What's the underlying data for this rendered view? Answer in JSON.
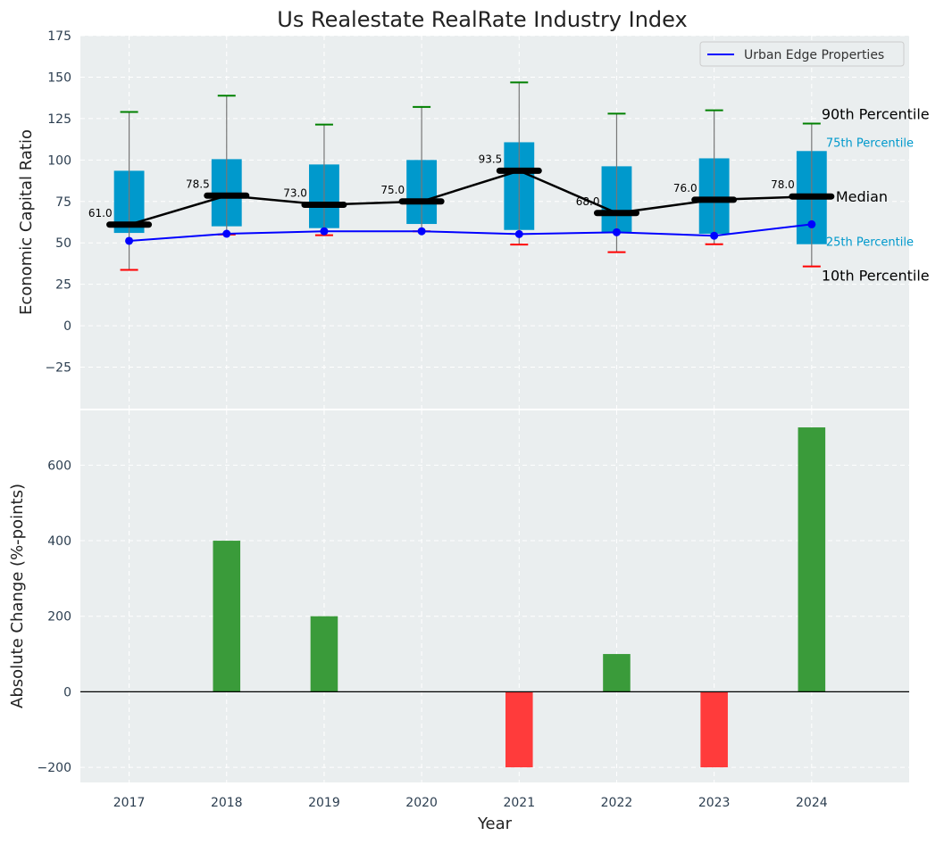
{
  "chart_data": [
    {
      "type": "box",
      "title": "Us Realestate RealRate Industry Index",
      "xlabel": "",
      "ylabel": "Economic Capital Ratio",
      "ylim": [
        -50,
        175
      ],
      "xlim": [
        2016.5,
        2025
      ],
      "yticks": [
        -25,
        0,
        25,
        50,
        75,
        100,
        125,
        150,
        175
      ],
      "grid": true,
      "categories": [
        2017,
        2018,
        2019,
        2020,
        2021,
        2022,
        2023,
        2024
      ],
      "p10": [
        33.7,
        55,
        54.6,
        57,
        49,
        44.4,
        49.2,
        35.8
      ],
      "p25": [
        56,
        60,
        58.9,
        61.4,
        57.8,
        56.4,
        55.5,
        49.2
      ],
      "median": [
        61.0,
        78.5,
        73.0,
        75.0,
        93.5,
        68.0,
        76.0,
        78.0
      ],
      "median_labels": [
        "61.0",
        "78.5",
        "73.0",
        "75.0",
        "93.5",
        "68.0",
        "76.0",
        "78.0"
      ],
      "p75": [
        93.5,
        100.5,
        97.3,
        100,
        110.7,
        96.2,
        101,
        105.4
      ],
      "p90": [
        129,
        138.8,
        121.4,
        132,
        146.8,
        128,
        130,
        122
      ],
      "series": [
        {
          "name": "Urban Edge Properties",
          "values": [
            51.2,
            55.5,
            57,
            57,
            55.3,
            56.4,
            54.3,
            61.2
          ],
          "color": "#0000ff"
        }
      ],
      "legend": "top-right",
      "annotations": [
        "90th Percentile",
        "75th Percentile",
        "Median",
        "25th Percentile",
        "10th Percentile"
      ],
      "colors": {
        "box": "#0099cc",
        "p90": "#008000",
        "p10": "#ff0000",
        "median": "#000000"
      }
    },
    {
      "type": "bar",
      "title": "",
      "xlabel": "Year",
      "ylabel": "Absolute Change (%-points)",
      "ylim": [
        -240,
        745
      ],
      "xlim": [
        2016.5,
        2025
      ],
      "yticks": [
        -200,
        0,
        200,
        400,
        600
      ],
      "grid": true,
      "categories": [
        2017,
        2018,
        2019,
        2020,
        2021,
        2022,
        2023,
        2024
      ],
      "values": [
        0,
        400,
        200,
        0,
        -200,
        100,
        -200,
        700
      ],
      "colors": {
        "positive": "#3a9b3a",
        "negative": "#ff3b3b"
      }
    }
  ]
}
